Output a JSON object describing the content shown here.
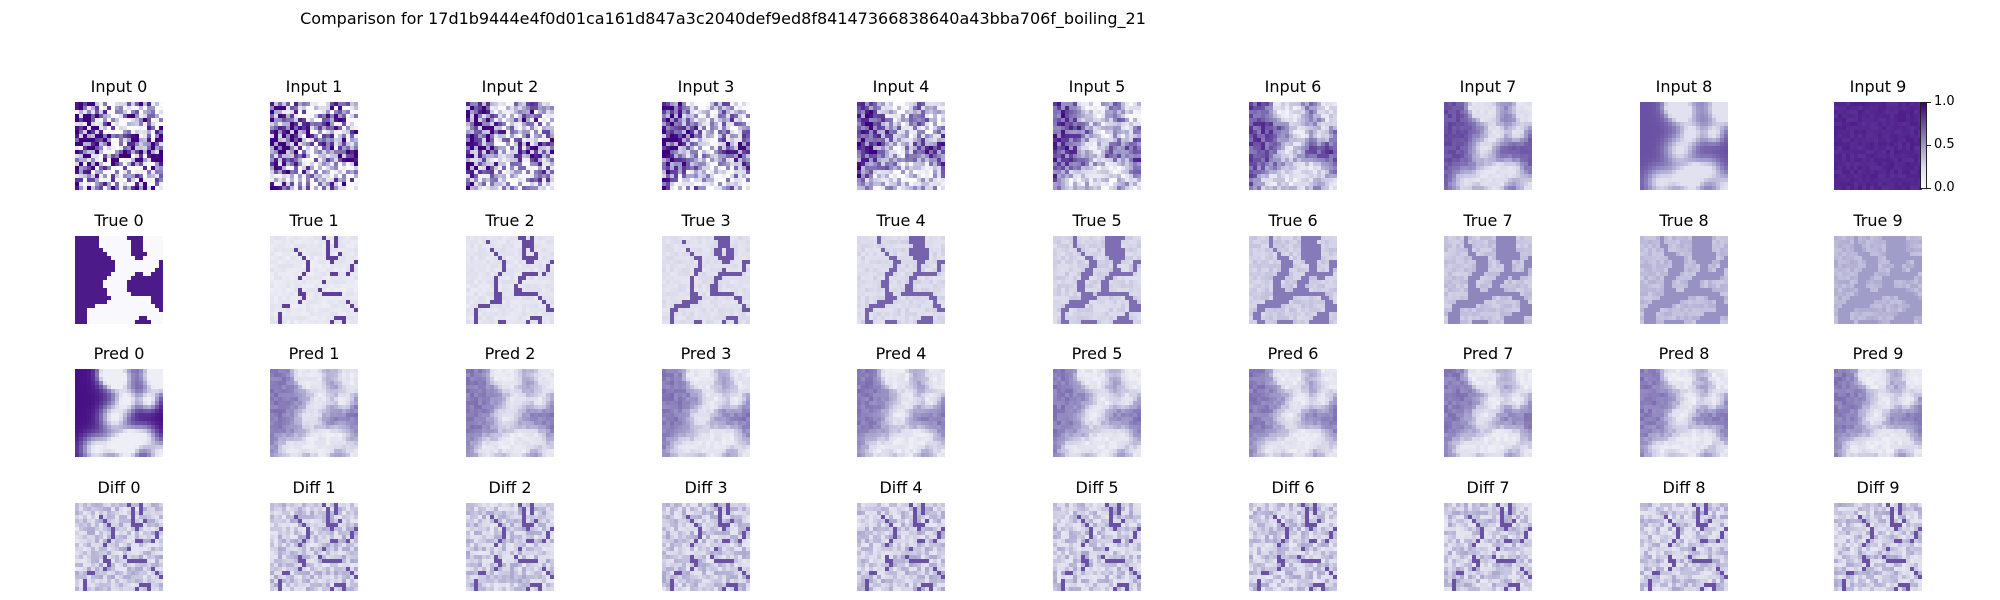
{
  "figure": {
    "title": "Comparison for 17d1b9444e4f0d01ca161d847a3c2040def9ed8f84147366838640a43bba706f_boiling_21"
  },
  "colors": {
    "colormap_low": "#fcfbfd",
    "colormap_high": "#3f007d",
    "axis_line": "#222222",
    "background": "#ffffff"
  },
  "chart_data": [
    {
      "type": "heatmap",
      "colormap": "Purples",
      "rows": [
        {
          "name": "Input",
          "panels": [
            "Input 0",
            "Input 1",
            "Input 2",
            "Input 3",
            "Input 4",
            "Input 5",
            "Input 6",
            "Input 7",
            "Input 8",
            "Input 9"
          ]
        },
        {
          "name": "True",
          "panels": [
            "True 0",
            "True 1",
            "True 2",
            "True 3",
            "True 4",
            "True 5",
            "True 6",
            "True 7",
            "True 8",
            "True 9"
          ]
        },
        {
          "name": "Pred",
          "panels": [
            "Pred 0",
            "Pred 1",
            "Pred 2",
            "Pred 3",
            "Pred 4",
            "Pred 5",
            "Pred 6",
            "Pred 7",
            "Pred 8",
            "Pred 9"
          ]
        },
        {
          "name": "Diff",
          "panels": [
            "Diff 0",
            "Diff 1",
            "Diff 2",
            "Diff 3",
            "Diff 4",
            "Diff 5",
            "Diff 6",
            "Diff 7",
            "Diff 8",
            "Diff 9"
          ]
        }
      ],
      "colorbar": {
        "attached_to": "Input 9",
        "range": [
          0.0,
          1.0
        ],
        "ticks": [
          "1.0",
          "0.5",
          "0.0"
        ]
      },
      "axes_visible": false
    }
  ]
}
